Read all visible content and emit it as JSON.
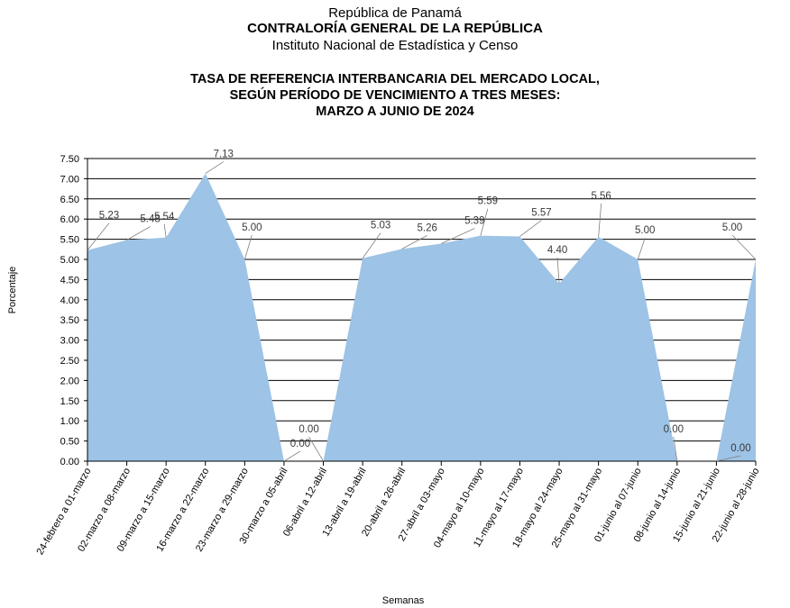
{
  "header": {
    "line1": "República de Panamá",
    "line2": "CONTRALORÍA GENERAL DE LA REPÚBLICA",
    "line3": "Instituto Nacional de Estadística y Censo"
  },
  "chart_data": {
    "type": "area",
    "title_lines": [
      "TASA DE REFERENCIA INTERBANCARIA DEL MERCADO LOCAL,",
      "SEGÚN PERÍODO DE VENCIMIENTO A TRES MESES:",
      "MARZO A JUNIO DE 2024"
    ],
    "xlabel": "Semanas",
    "ylabel": "Porcentaje",
    "ylim": [
      0,
      7.5
    ],
    "yticks": [
      "0.00",
      "0.50",
      "1.00",
      "1.50",
      "2.00",
      "2.50",
      "3.00",
      "3.50",
      "4.00",
      "4.50",
      "5.00",
      "5.50",
      "6.00",
      "6.50",
      "7.00",
      "7.50"
    ],
    "grid": true,
    "fill_color": "#9dc3e6",
    "categories": [
      "24-febrero a 01-marzo",
      "02-marzo a 08-marzo",
      "09-marzo a 15-marzo",
      "16-marzo a 22-marzo",
      "23-marzo a 29-marzo",
      "30-marzo a 05-abril",
      "06-abril a 12-abril",
      "13-abril a 19-abril",
      "20-abril a 26-abril",
      "27-abril a 03-mayo",
      "04-mayo al 10-mayo",
      "11-mayo al 17-mayo",
      "18-mayo al 24-mayo",
      "25-mayo al 31-mayo",
      "01-junio al 07-junio",
      "08-junio al 14-junio",
      "15-junio al 21-junio",
      "22-junio al 28-junio"
    ],
    "values": [
      5.23,
      5.48,
      5.54,
      7.13,
      5.0,
      0.0,
      0.0,
      5.03,
      5.26,
      5.39,
      5.59,
      5.57,
      4.4,
      5.56,
      5.0,
      0.0,
      0.0,
      5.0
    ],
    "data_labels": [
      "5.23",
      "5.48",
      "5.54",
      "7.13",
      "5.00",
      "0.00",
      "0.00",
      "5.03",
      "5.26",
      "5.39",
      "5.59",
      "5.57",
      "4.40",
      "5.56",
      "5.00",
      "0.00",
      "0.00",
      "5.00"
    ]
  }
}
